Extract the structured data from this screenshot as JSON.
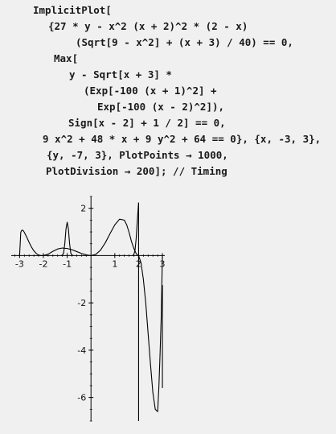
{
  "notebook": {
    "input_lines": [
      "ImplicitPlot[",
      "{27 * y - x^2 (x + 2)^2 * (2 - x)",
      "(Sqrt[9 - x^2] + (x + 3) / 40) == 0,",
      "Max[",
      "y - Sqrt[x + 3] *",
      "(Exp[-100 (x + 1)^2] +",
      "Exp[-100 (x - 2)^2]),",
      "Sign[x - 2] + 1 / 2] == 0,",
      "9 x^2 + 48 * x + 9 y^2 + 64 == 0}, {x, -3, 3},",
      "{y, -7, 3}, PlotPoints → 1000,",
      "PlotDivision → 200]; // Timing"
    ]
  },
  "chart_data": {
    "type": "line",
    "title": "",
    "xlabel": "",
    "ylabel": "",
    "xlim": [
      -3.35,
      3.1
    ],
    "ylim": [
      -7.0,
      2.5
    ],
    "x_ticks": [
      -3,
      -2,
      -1,
      1,
      2,
      3
    ],
    "y_ticks": [
      2,
      -2,
      -4,
      -6
    ],
    "x_tick_labels": [
      "-3",
      "-2",
      "-1",
      "1",
      "2",
      "3"
    ],
    "y_tick_labels": [
      "2",
      "-2",
      "-4",
      "-6"
    ],
    "grid": false,
    "series": [
      {
        "x": [
          -3.0,
          -2.95,
          -2.9,
          -2.85,
          -2.8,
          -2.7,
          -2.6,
          -2.5,
          -2.4,
          -2.3,
          -2.2,
          -2.1,
          -2.0,
          -1.8,
          -1.6,
          -1.4,
          -1.2,
          -1.0,
          -0.8,
          -0.6,
          -0.4,
          -0.2,
          0.0,
          0.2,
          0.4,
          0.6,
          0.8,
          1.0,
          1.2,
          1.4,
          1.5,
          1.6,
          1.7,
          1.8,
          1.9,
          1.95,
          2.0,
          2.1,
          2.2,
          2.3,
          2.4,
          2.5,
          2.6,
          2.7,
          2.8,
          2.85,
          2.9,
          2.95,
          3.0
        ],
        "y": [
          0.0,
          0.99,
          1.08,
          1.06,
          0.98,
          0.78,
          0.56,
          0.36,
          0.2,
          0.09,
          0.02,
          0.0,
          0.0,
          0.06,
          0.18,
          0.28,
          0.32,
          0.3,
          0.25,
          0.17,
          0.09,
          0.03,
          0.0,
          0.05,
          0.23,
          0.54,
          0.93,
          1.3,
          1.54,
          1.5,
          1.3,
          0.98,
          0.6,
          0.3,
          0.08,
          0.02,
          0.0,
          -0.3,
          -1.0,
          -2.0,
          -3.3,
          -4.6,
          -5.8,
          -6.5,
          -6.6,
          -5.6,
          -4.2,
          -2.6,
          0.0
        ]
      },
      {
        "x": [
          -1.25,
          -1.2,
          -1.15,
          -1.1,
          -1.05,
          -1.0,
          -0.95,
          -0.9,
          -0.85,
          -0.8,
          -0.75
        ],
        "y": [
          0.0,
          0.02,
          0.11,
          0.51,
          1.13,
          1.41,
          1.13,
          0.51,
          0.11,
          0.02,
          0.0
        ]
      },
      {
        "x": [
          1.75,
          1.8,
          1.85,
          1.9,
          1.95,
          2.0
        ],
        "y": [
          0.0,
          0.04,
          0.23,
          0.75,
          1.55,
          2.24
        ]
      },
      {
        "x": [
          2.0,
          2.0
        ],
        "y": [
          2.24,
          -7.0
        ]
      },
      {
        "x": [
          3.0,
          3.0
        ],
        "y": [
          -1.25,
          -5.6
        ]
      }
    ]
  }
}
